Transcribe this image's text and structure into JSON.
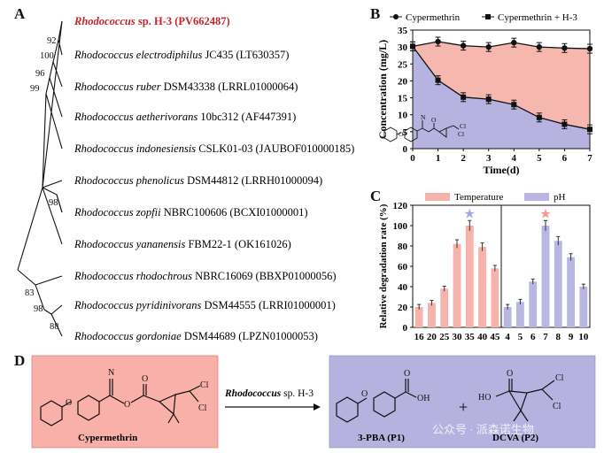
{
  "panel_labels": {
    "a": "A",
    "b": "B",
    "c": "C",
    "d": "D"
  },
  "tree": {
    "leaves": [
      {
        "genus": "Rhodococcus",
        "species": "sp. H-3",
        "strain": "",
        "accession": "(PV662487)",
        "highlight": true,
        "color": "#c0262c"
      },
      {
        "genus": "Rhodococcus",
        "species": "electrodiphilus",
        "strain": "JC435",
        "accession": "(LT630357)",
        "highlight": false
      },
      {
        "genus": "Rhodococcus",
        "species": "ruber",
        "strain": "DSM43338",
        "accession": "(LRRL01000064)",
        "highlight": false
      },
      {
        "genus": "Rhodococcus",
        "species": "aetherivorans",
        "strain": "10bc312",
        "accession": "(AF447391)",
        "highlight": false
      },
      {
        "genus": "Rhodococcus",
        "species": "indonesiensis",
        "strain": "CSLK01-03",
        "accession": "(JAUBOF010000185)",
        "highlight": false
      },
      {
        "genus": "Rhodococcus",
        "species": "phenolicus",
        "strain": "DSM44812",
        "accession": "(LRRH01000094)",
        "highlight": false
      },
      {
        "genus": "Rhodococcus",
        "species": "zopfii",
        "strain": "NBRC100606",
        "accession": "(BCXI01000001)",
        "highlight": false
      },
      {
        "genus": "Rhodococcus",
        "species": "yananensis",
        "strain": "FBM22-1",
        "accession": "(OK161026)",
        "highlight": false
      },
      {
        "genus": "Rhodococcus",
        "species": "rhodochrous",
        "strain": "NBRC16069",
        "accession": "(BBXP01000056)",
        "highlight": false
      },
      {
        "genus": "Rhodococcus",
        "species": "pyridinivorans",
        "strain": "DSM44555",
        "accession": "(LRRI01000001)",
        "highlight": false
      },
      {
        "genus": "Rhodococcus",
        "species": "gordoniae",
        "strain": "DSM44689",
        "accession": "(LPZN01000053)",
        "highlight": false
      }
    ],
    "bootstrap": [
      "92",
      "100",
      "96",
      "99",
      "98",
      "83",
      "98",
      "88"
    ]
  },
  "chart_data": [
    {
      "type": "line",
      "panel": "B",
      "xlabel": "Time(d)",
      "ylabel": "Concentration (mg/L)",
      "x": [
        0,
        1,
        2,
        3,
        4,
        5,
        6,
        7
      ],
      "xlim": [
        0,
        7
      ],
      "ylim": [
        0,
        35
      ],
      "xticks": [
        "0",
        "1",
        "2",
        "3",
        "4",
        "5",
        "6",
        "7"
      ],
      "yticks": [
        "0",
        "5",
        "10",
        "15",
        "20",
        "25",
        "30",
        "35"
      ],
      "series": [
        {
          "name": "Cypermethrin",
          "marker": "circle",
          "values": [
            30.2,
            31.6,
            30.4,
            30.0,
            31.3,
            30.0,
            29.7,
            29.5
          ]
        },
        {
          "name": "Cypermethrin + H-3",
          "marker": "square",
          "values": [
            30.2,
            20.2,
            15.2,
            14.6,
            13.0,
            9.2,
            7.2,
            5.7
          ]
        }
      ],
      "fill_colors": {
        "upper": "#f6b8ae",
        "lower": "#b6b3e0"
      }
    },
    {
      "type": "bar",
      "panel": "C",
      "ylabel": "Relative degradation rate (%)",
      "ylim": [
        0,
        120
      ],
      "yticks": [
        "0",
        "20",
        "40",
        "60",
        "80",
        "100",
        "120"
      ],
      "groups": [
        {
          "name": "Temperature",
          "color": "#f6b3ab",
          "categories": [
            "16",
            "20",
            "25",
            "30",
            "35",
            "40",
            "45"
          ],
          "values": [
            20,
            24,
            38,
            82,
            100,
            79,
            58
          ],
          "optimum_index": 4
        },
        {
          "name": "pH",
          "color": "#b9b7e2",
          "categories": [
            "4",
            "5",
            "6",
            "7",
            "8",
            "9",
            "10"
          ],
          "values": [
            20,
            25,
            45,
            100,
            85,
            69,
            40
          ],
          "optimum_index": 3
        }
      ],
      "star_colors": {
        "temperature_star": "#a4a7dd",
        "ph_star": "#f19a93"
      }
    }
  ],
  "scheme": {
    "substrate": "Cypermethrin",
    "organism_genus": "Rhodococcus",
    "organism_rest": "sp. H-3",
    "product1": "3-PBA (P1)",
    "product2": "DCVA (P2)",
    "plus": "+",
    "atoms": {
      "N": "N",
      "O": "O",
      "Cl": "Cl",
      "OH": "OH",
      "HO": "HO"
    },
    "left_color": "#f8b0a8",
    "right_color": "#b5b2df"
  },
  "watermark": "公众号 · 派森诺生物"
}
